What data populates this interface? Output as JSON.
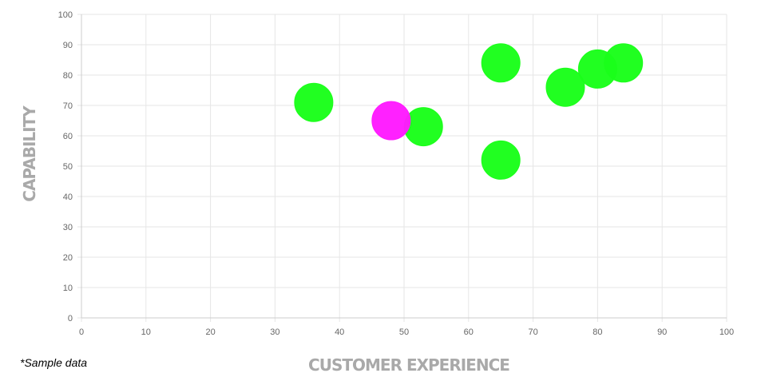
{
  "chart_data": {
    "type": "scatter",
    "xlabel": "CUSTOMER EXPERIENCE",
    "ylabel": "CAPABILITY",
    "xlim": [
      0,
      100
    ],
    "ylim": [
      0,
      100
    ],
    "x_ticks": [
      "0",
      "10",
      "20",
      "30",
      "40",
      "50",
      "60",
      "70",
      "80",
      "90",
      "100"
    ],
    "y_ticks": [
      "0",
      "10",
      "20",
      "30",
      "40",
      "50",
      "60",
      "70",
      "80",
      "90",
      "100"
    ],
    "grid": true,
    "legend": "none",
    "points": [
      {
        "x": 36,
        "y": 71,
        "color": "#1aff1a"
      },
      {
        "x": 53,
        "y": 63,
        "color": "#1aff1a"
      },
      {
        "x": 48,
        "y": 65,
        "color": "#ff1aff"
      },
      {
        "x": 65,
        "y": 84,
        "color": "#1aff1a"
      },
      {
        "x": 65,
        "y": 52,
        "color": "#1aff1a"
      },
      {
        "x": 75,
        "y": 76,
        "color": "#1aff1a"
      },
      {
        "x": 80,
        "y": 82,
        "color": "#1aff1a"
      },
      {
        "x": 84,
        "y": 84,
        "color": "#1aff1a"
      }
    ],
    "colors": {
      "green": "#1aff1a",
      "magenta": "#ff1aff",
      "grid": "#e6e6e6",
      "axis_title": "#a9a9a9",
      "tick_label": "#666666"
    }
  },
  "footnote": "*Sample data"
}
